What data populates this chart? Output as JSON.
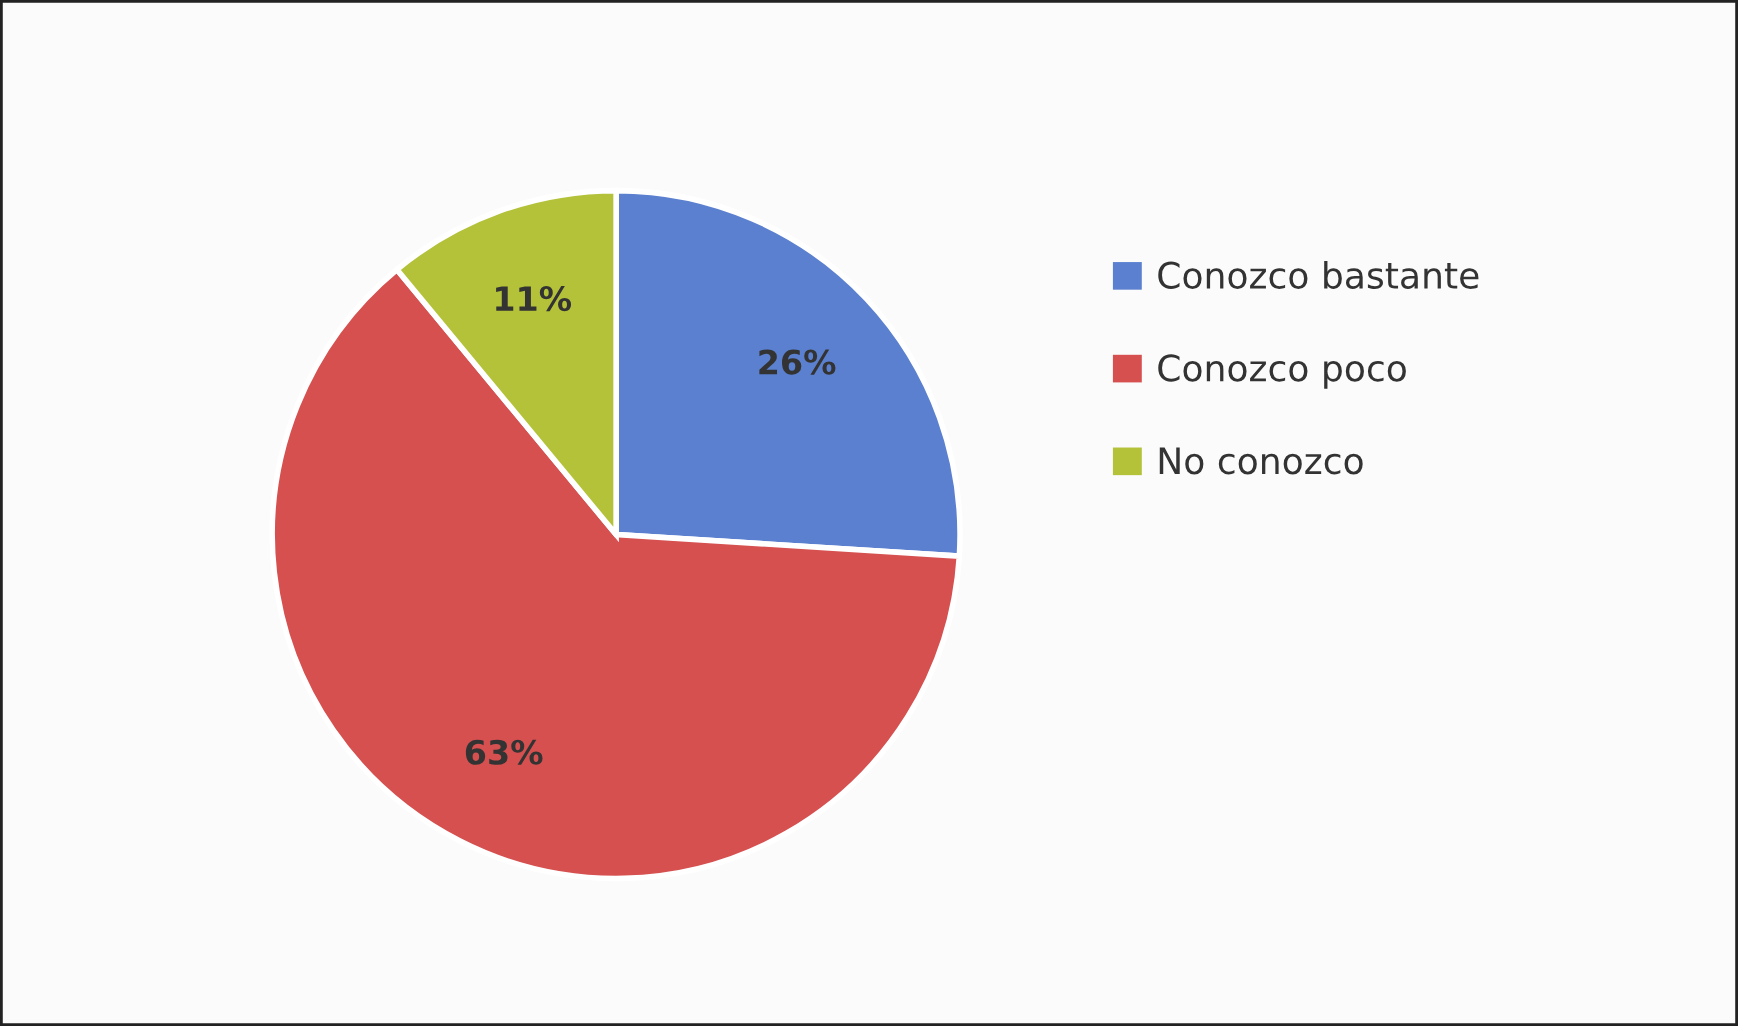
{
  "chart_data": {
    "type": "pie",
    "categories": [
      "Conozco bastante",
      "Conozco poco",
      "No conozco"
    ],
    "values": [
      26,
      63,
      11
    ],
    "colors": [
      "#5b80cf",
      "#d65050",
      "#b4c23a"
    ],
    "value_labels": [
      "26%",
      "63%",
      "11%"
    ],
    "legend": "right"
  }
}
